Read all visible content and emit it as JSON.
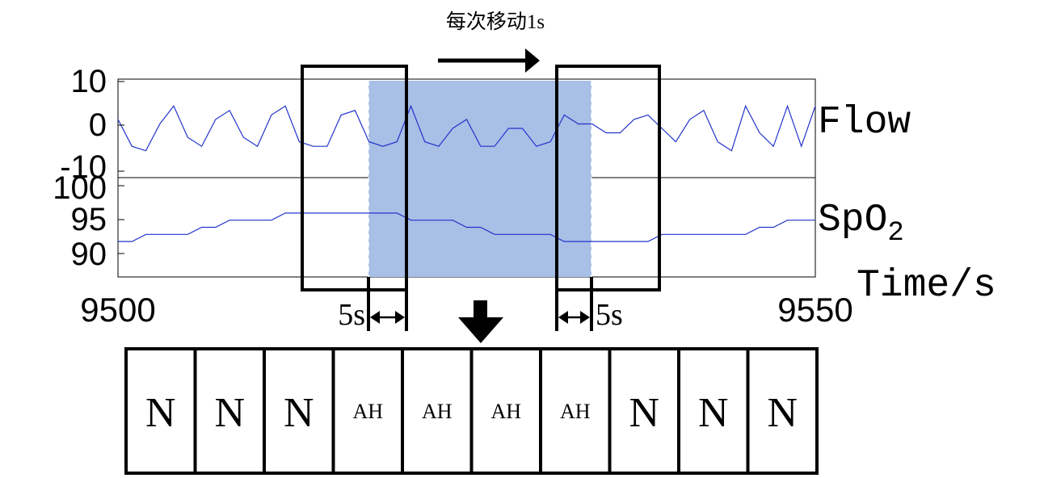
{
  "caption": "每次移动1s",
  "flow_label": "Flow",
  "spo2_label": {
    "main": "SpO",
    "sub": "2"
  },
  "time_label": "Time/s",
  "x_ticks": [
    "9500",
    "9550"
  ],
  "flow_ticks": [
    "10",
    "0",
    "-10"
  ],
  "spo2_ticks": [
    "100",
    "95",
    "90"
  ],
  "gap_left": "5s",
  "gap_right": "5s",
  "segments": [
    "N",
    "N",
    "N",
    "AH",
    "AH",
    "AH",
    "AH",
    "N",
    "N",
    "N"
  ],
  "colors": {
    "signal": "#2233cc",
    "highlight": "#a8bfe6",
    "frame": "#000000"
  },
  "chart_data": [
    {
      "type": "line",
      "series": [
        {
          "name": "Flow"
        }
      ],
      "xlim": [
        9500,
        9550
      ],
      "ylim": [
        -11,
        11
      ],
      "ylabel": "Flow",
      "x": [
        9500,
        9501,
        9502,
        9503,
        9504,
        9505,
        9506,
        9507,
        9508,
        9509,
        9510,
        9511,
        9512,
        9513,
        9514,
        9515,
        9516,
        9517,
        9518,
        9519,
        9520,
        9521,
        9522,
        9523,
        9524,
        9525,
        9526,
        9527,
        9528,
        9529,
        9530,
        9531,
        9532,
        9533,
        9534,
        9535,
        9536,
        9537,
        9538,
        9539,
        9540,
        9541,
        9542,
        9543,
        9544,
        9545,
        9546,
        9547,
        9548,
        9549,
        9550
      ],
      "y": [
        2,
        -4,
        -5,
        1,
        5,
        -2,
        -4,
        2,
        4,
        -2,
        -4,
        3,
        5,
        -3,
        -4,
        -4,
        3,
        4,
        -3,
        -4,
        -3,
        5,
        -3,
        -4,
        0,
        2,
        -4,
        -4,
        0,
        0,
        -4,
        -3,
        3,
        1,
        1,
        -1,
        -1,
        2,
        3,
        0,
        -3,
        2,
        4,
        -3,
        -5,
        5,
        -1,
        -4,
        5,
        -4,
        5
      ]
    },
    {
      "type": "line",
      "series": [
        {
          "name": "SpO2"
        }
      ],
      "xlim": [
        9500,
        9550
      ],
      "ylim": [
        87,
        101
      ],
      "ylabel": "SpO2",
      "x": [
        9500,
        9501,
        9502,
        9503,
        9504,
        9505,
        9506,
        9507,
        9508,
        9509,
        9510,
        9511,
        9512,
        9513,
        9514,
        9515,
        9516,
        9517,
        9518,
        9519,
        9520,
        9521,
        9522,
        9523,
        9524,
        9525,
        9526,
        9527,
        9528,
        9529,
        9530,
        9531,
        9532,
        9533,
        9534,
        9535,
        9536,
        9537,
        9538,
        9539,
        9540,
        9541,
        9542,
        9543,
        9544,
        9545,
        9546,
        9547,
        9548,
        9549,
        9550
      ],
      "y": [
        92,
        92,
        93,
        93,
        93,
        93,
        94,
        94,
        95,
        95,
        95,
        95,
        96,
        96,
        96,
        96,
        96,
        96,
        96,
        96,
        96,
        95,
        95,
        95,
        95,
        94,
        94,
        93,
        93,
        93,
        93,
        93,
        92,
        92,
        92,
        92,
        92,
        92,
        92,
        93,
        93,
        93,
        93,
        93,
        93,
        93,
        94,
        94,
        95,
        95,
        95
      ]
    }
  ]
}
